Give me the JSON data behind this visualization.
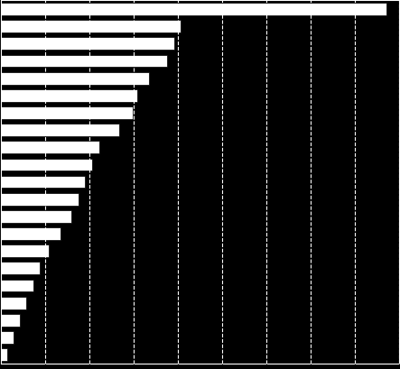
{
  "values": [
    1695,
    790,
    760,
    730,
    650,
    600,
    580,
    520,
    430,
    400,
    370,
    340,
    310,
    260,
    210,
    170,
    140,
    110,
    80,
    55,
    25
  ],
  "bar_color": "#ffffff",
  "background_color": "#000000",
  "grid_color": "#ffffff",
  "xlim": [
    0,
    1750
  ],
  "bar_height": 0.72,
  "grid_linestyle": "--",
  "grid_linewidth": 0.8,
  "num_gridlines": 9
}
